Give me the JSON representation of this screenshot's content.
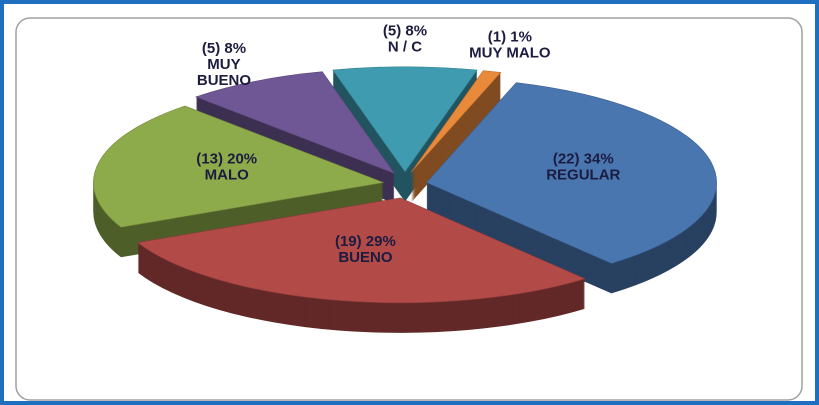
{
  "chart_data": {
    "type": "pie",
    "categories": [
      "REGULAR",
      "BUENO",
      "MALO",
      "MUY BUENO",
      "N / C",
      "MUY MALO"
    ],
    "values": [
      34,
      29,
      20,
      8,
      8,
      1
    ],
    "value_labels": [
      "(22) 34%",
      "(19) 29%",
      "(13) 20%",
      "(5) 8%",
      "(5) 8%",
      "(1) 1%"
    ],
    "colors": [
      "#4a76b0",
      "#b24a48",
      "#8dab4a",
      "#6f5795",
      "#3f9bb0",
      "#e9893a"
    ]
  }
}
